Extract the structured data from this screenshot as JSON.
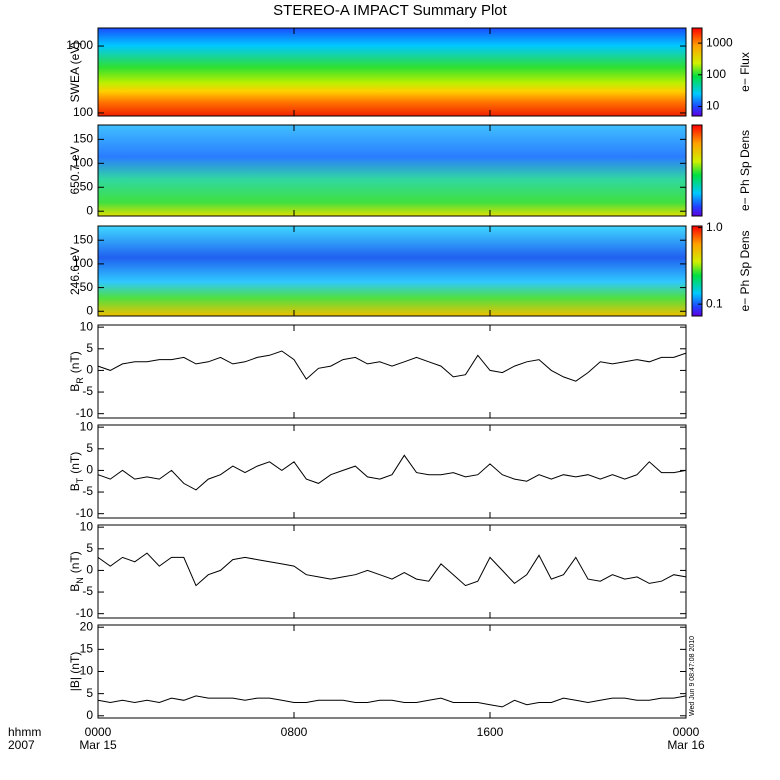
{
  "title": "STEREO-A IMPACT Summary Plot",
  "time_label": "hhmm",
  "year_label": "2007",
  "timestamp": "Wed Jun  9 08:47:08 2010",
  "chart_data": [
    {
      "type": "spectrogram",
      "ylabel": "SWEA (eV)",
      "log": true,
      "ylim": [
        90,
        1860
      ],
      "yticks": [
        100,
        1000
      ],
      "colorbar": {
        "label": "e− Flux",
        "log": true,
        "lim": [
          5,
          3000
        ],
        "ticks": [
          10,
          100,
          1000
        ]
      }
    },
    {
      "type": "spectrogram",
      "ylabel": "650.7 eV",
      "log": false,
      "ylim": [
        -10,
        180
      ],
      "yticks": [
        0,
        50,
        100,
        150
      ],
      "colorbar": {
        "label": "e− Ph Sp Dens",
        "log": true,
        "lim": [
          0.07,
          1.05
        ],
        "ticks": []
      }
    },
    {
      "type": "spectrogram",
      "ylabel": "246.6 eV",
      "log": false,
      "ylim": [
        -10,
        180
      ],
      "yticks": [
        0,
        50,
        100,
        150
      ],
      "colorbar": {
        "label": "e− Ph Sp Dens",
        "log": true,
        "lim": [
          0.07,
          1.05
        ],
        "ticks": [
          {
            "value": 1.0,
            "label": "1.0"
          },
          0.1
        ]
      }
    },
    {
      "type": "line",
      "ylabel": "B",
      "ylabel_sub": "R",
      "ylabel_unit": "(nT)",
      "xlim": [
        0,
        24
      ],
      "ylim": [
        -11,
        10.5
      ],
      "yticks": [
        -10,
        -5,
        0,
        5,
        10
      ],
      "x": [
        0,
        0.5,
        1,
        1.5,
        2,
        2.5,
        3,
        3.5,
        4,
        4.5,
        5,
        5.5,
        6,
        6.5,
        7,
        7.5,
        8,
        8.5,
        9,
        9.5,
        10,
        10.5,
        11,
        11.5,
        12,
        12.5,
        13,
        13.5,
        14,
        14.5,
        15,
        15.5,
        16,
        16.5,
        17,
        17.5,
        18,
        18.5,
        19,
        19.5,
        20,
        20.5,
        21,
        21.5,
        22,
        22.5,
        23,
        23.5,
        24
      ],
      "series": [
        {
          "color": "#000000",
          "values": [
            1,
            0,
            1.5,
            2,
            2,
            2.5,
            2.5,
            3,
            1.5,
            2,
            3,
            1.5,
            2,
            3,
            3.5,
            4.5,
            2.5,
            -2,
            0.5,
            1,
            2.5,
            3,
            1.5,
            2,
            1,
            2,
            3,
            2,
            1,
            -1.5,
            -1,
            3.5,
            0,
            -0.5,
            1,
            2,
            2.5,
            0,
            -1.5,
            -2.5,
            -0.5,
            2,
            1.5,
            2,
            2.5,
            2,
            3,
            3,
            4
          ]
        }
      ]
    },
    {
      "type": "line",
      "ylabel": "B",
      "ylabel_sub": "T",
      "ylabel_unit": "(nT)",
      "xlim": [
        0,
        24
      ],
      "ylim": [
        -11,
        10.5
      ],
      "yticks": [
        -10,
        -5,
        0,
        5,
        10
      ],
      "x": [
        0,
        0.5,
        1,
        1.5,
        2,
        2.5,
        3,
        3.5,
        4,
        4.5,
        5,
        5.5,
        6,
        6.5,
        7,
        7.5,
        8,
        8.5,
        9,
        9.5,
        10,
        10.5,
        11,
        11.5,
        12,
        12.5,
        13,
        13.5,
        14,
        14.5,
        15,
        15.5,
        16,
        16.5,
        17,
        17.5,
        18,
        18.5,
        19,
        19.5,
        20,
        20.5,
        21,
        21.5,
        22,
        22.5,
        23,
        23.5,
        24
      ],
      "series": [
        {
          "color": "#000000",
          "values": [
            -1,
            -2,
            0,
            -2,
            -1.5,
            -2,
            0,
            -3,
            -4.5,
            -2,
            -1,
            1,
            -0.5,
            1,
            2,
            0,
            2,
            -2,
            -3,
            -1,
            0,
            1,
            -1.5,
            -2,
            -1,
            3.5,
            -0.5,
            -1,
            -1,
            -0.5,
            -1.5,
            -1,
            1.5,
            -1,
            -2,
            -2.5,
            -1,
            -2,
            -1,
            -1.5,
            -1,
            -2,
            -1,
            -2,
            -1,
            2,
            -0.5,
            -0.5,
            0
          ]
        }
      ]
    },
    {
      "type": "line",
      "ylabel": "B",
      "ylabel_sub": "N",
      "ylabel_unit": "(nT)",
      "xlim": [
        0,
        24
      ],
      "ylim": [
        -11,
        10.5
      ],
      "yticks": [
        -10,
        -5,
        0,
        5,
        10
      ],
      "x": [
        0,
        0.5,
        1,
        1.5,
        2,
        2.5,
        3,
        3.5,
        4,
        4.5,
        5,
        5.5,
        6,
        6.5,
        7,
        7.5,
        8,
        8.5,
        9,
        9.5,
        10,
        10.5,
        11,
        11.5,
        12,
        12.5,
        13,
        13.5,
        14,
        14.5,
        15,
        15.5,
        16,
        16.5,
        17,
        17.5,
        18,
        18.5,
        19,
        19.5,
        20,
        20.5,
        21,
        21.5,
        22,
        22.5,
        23,
        23.5,
        24
      ],
      "series": [
        {
          "color": "#000000",
          "values": [
            3,
            1,
            3,
            2,
            4,
            1,
            3,
            3,
            -3.5,
            -1,
            0,
            2.5,
            3,
            2.5,
            2,
            1.5,
            1,
            -1,
            -1.5,
            -2,
            -1.5,
            -1,
            0,
            -1,
            -2,
            -0.5,
            -2,
            -2.5,
            1.5,
            -1,
            -3.5,
            -2.5,
            3,
            0,
            -3,
            -1,
            3.5,
            -2,
            -1,
            3,
            -2,
            -2.5,
            -1,
            -2,
            -1.5,
            -3,
            -2.5,
            -1,
            -1.5
          ]
        }
      ]
    },
    {
      "type": "line",
      "ylabel": "|B| (nT)",
      "xlim": [
        0,
        24
      ],
      "ylim": [
        -0.5,
        20.5
      ],
      "yticks": [
        0,
        5,
        10,
        15,
        20
      ],
      "x": [
        0,
        0.5,
        1,
        1.5,
        2,
        2.5,
        3,
        3.5,
        4,
        4.5,
        5,
        5.5,
        6,
        6.5,
        7,
        7.5,
        8,
        8.5,
        9,
        9.5,
        10,
        10.5,
        11,
        11.5,
        12,
        12.5,
        13,
        13.5,
        14,
        14.5,
        15,
        15.5,
        16,
        16.5,
        17,
        17.5,
        18,
        18.5,
        19,
        19.5,
        20,
        20.5,
        21,
        21.5,
        22,
        22.5,
        23,
        23.5,
        24
      ],
      "series": [
        {
          "color": "#000000",
          "values": [
            3.5,
            3,
            3.5,
            3,
            3.5,
            3,
            4,
            3.5,
            4.5,
            4,
            4,
            4,
            3.5,
            4,
            4,
            3.5,
            3,
            3,
            3.5,
            3.5,
            3.5,
            3,
            3,
            3.5,
            3.5,
            3,
            3,
            3.5,
            4,
            3,
            3,
            3,
            2.5,
            2,
            3.5,
            2.5,
            3,
            3,
            4,
            3.5,
            3,
            3.5,
            4,
            4,
            3.5,
            3.5,
            4,
            4,
            4.5
          ]
        }
      ],
      "xticks": [
        {
          "value": 0,
          "label": "0000"
        },
        {
          "value": 8,
          "label": "0800"
        },
        {
          "value": 16,
          "label": "1600"
        },
        {
          "value": 24,
          "label": "0000"
        }
      ],
      "xtick_dates": [
        "Mar 15",
        null,
        null,
        "Mar 16"
      ]
    }
  ]
}
